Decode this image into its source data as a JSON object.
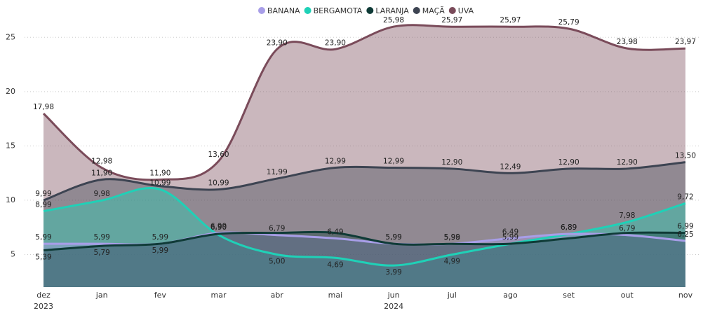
{
  "chart_data": {
    "type": "area",
    "categories": [
      "dez",
      "jan",
      "fev",
      "mar",
      "abr",
      "mai",
      "jun",
      "jul",
      "ago",
      "set",
      "out",
      "nov"
    ],
    "year_labels": [
      {
        "label": "2023",
        "from": 0,
        "to": 0
      },
      {
        "label": "2024",
        "from": 1,
        "to": 11
      }
    ],
    "ylim": [
      2,
      26.5
    ],
    "yticks": [
      5,
      10,
      15,
      20,
      25
    ],
    "grid": true,
    "legend": "top",
    "series": [
      {
        "name": "UVA",
        "color": "#7a4b5a",
        "values": [
          17.98,
          12.98,
          11.9,
          13.6,
          23.9,
          23.9,
          25.98,
          25.97,
          25.97,
          25.79,
          23.98,
          23.97
        ],
        "value_labels": [
          "17,98",
          "12,98",
          "11,90",
          "13,60",
          "23,90",
          "23,90",
          "25,98",
          "25,97",
          "25,97",
          "25,79",
          "23,98",
          "23,97"
        ]
      },
      {
        "name": "MAÇÃ",
        "color": "#3d4452",
        "values": [
          9.99,
          11.9,
          11.3,
          10.99,
          11.99,
          12.99,
          12.99,
          12.9,
          12.49,
          12.9,
          12.9,
          13.5
        ],
        "value_labels": [
          "9,99",
          "11,90",
          null,
          "10,99",
          "11,99",
          "12,99",
          "12,99",
          "12,90",
          "12,49",
          "12,90",
          "12,90",
          "13,50"
        ]
      },
      {
        "name": "BERGAMOTA",
        "color": "#1fd1b7",
        "values": [
          8.99,
          9.98,
          10.99,
          6.8,
          5.0,
          4.69,
          3.99,
          4.99,
          5.99,
          6.89,
          7.98,
          9.72
        ],
        "value_labels": [
          "8,99",
          "9,98",
          "10,99",
          null,
          "5,00",
          "4,69",
          "3,99",
          "4,99",
          null,
          "6,89",
          "7,98",
          "9,72"
        ]
      },
      {
        "name": "BANANA",
        "color": "#a89ee8",
        "values": [
          5.99,
          5.99,
          5.99,
          6.99,
          6.79,
          6.49,
          5.99,
          5.99,
          6.49,
          6.89,
          6.79,
          6.25
        ],
        "value_labels": [
          "5,99",
          "5,99",
          "5,99",
          "6,99",
          "6,79",
          "6,49",
          "5,99",
          "5,99",
          "6,49",
          "6,89",
          "6,79",
          "6,25"
        ]
      },
      {
        "name": "LARANJA",
        "color": "#0f3b37",
        "values": [
          5.39,
          5.79,
          5.99,
          6.9,
          6.99,
          6.99,
          5.99,
          5.98,
          5.99,
          6.49,
          6.99,
          6.99
        ],
        "value_labels": [
          "5,39",
          "5,79",
          "5,99",
          "6,90",
          null,
          null,
          "5,99",
          "5,98",
          "5,99",
          null,
          null,
          "6,99"
        ]
      }
    ]
  }
}
